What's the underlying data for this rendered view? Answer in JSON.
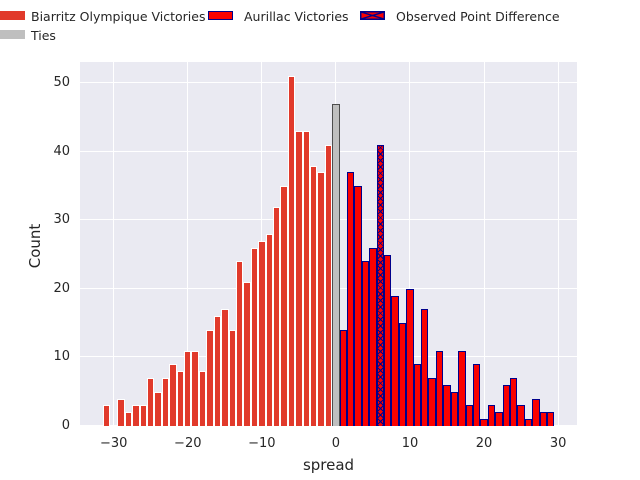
{
  "legend": {
    "items": [
      {
        "label": "Biarritz Olympique Victories",
        "swatch": "solid",
        "color": "#e13a2b",
        "edge": "none"
      },
      {
        "label": "Aurillac Victories",
        "swatch": "solid",
        "color": "#fa0100",
        "edge": "#00008b"
      },
      {
        "label": "Observed Point Difference",
        "swatch": "x-hatch",
        "color": "#fa0100",
        "edge": "#00008b",
        "hatch_color": "#00008b"
      },
      {
        "label": "Ties",
        "swatch": "solid",
        "color": "#bfbfbf",
        "edge": "none"
      }
    ]
  },
  "axes": {
    "xlabel": "spread",
    "ylabel": "Count",
    "x_tick_labels": [
      "−30",
      "−20",
      "−10",
      "0",
      "10",
      "20",
      "30"
    ],
    "y_tick_labels": [
      "0",
      "10",
      "20",
      "30",
      "40",
      "50"
    ]
  },
  "colors": {
    "plot_background": "#eaeaf2",
    "figure_background": "#ffffff",
    "gridline": "#ffffff",
    "text": "#262626",
    "biarritz_bar": "#e13a2b",
    "aurillac_bar": "#fa0100",
    "aurillac_edge": "#00008b",
    "ties_bar": "#bfbfbf",
    "ties_edge": "#4d4d4d"
  },
  "chart_data": {
    "type": "bar",
    "subtype": "histogram",
    "title": "",
    "xlabel": "spread",
    "ylabel": "Count",
    "bin_width": 1,
    "x_ticks": [
      -30,
      -20,
      -10,
      0,
      10,
      20,
      30
    ],
    "y_ticks": [
      0,
      10,
      20,
      30,
      40,
      50
    ],
    "xlim": [
      -34.55,
      32.55
    ],
    "ylim": [
      0,
      53.1
    ],
    "grid": true,
    "legend_position": "top-left-above-axes",
    "series": [
      {
        "name": "Biarritz Olympique Victories",
        "style": "biarritz",
        "x": [
          -31,
          -29,
          -28,
          -27,
          -26,
          -25,
          -24,
          -23,
          -22,
          -21,
          -20,
          -19,
          -18,
          -17,
          -16,
          -15,
          -14,
          -13,
          -12,
          -11,
          -10,
          -9,
          -8,
          -7,
          -6,
          -5,
          -4,
          -3,
          -2,
          -1
        ],
        "values": [
          3,
          4,
          2,
          3,
          3,
          7,
          5,
          7,
          9,
          8,
          11,
          11,
          8,
          14,
          16,
          17,
          14,
          24,
          21,
          26,
          27,
          28,
          32,
          35,
          51,
          43,
          43,
          38,
          37,
          41
        ]
      },
      {
        "name": "Ties",
        "style": "ties",
        "x": [
          0
        ],
        "values": [
          47
        ]
      },
      {
        "name": "Aurillac Victories",
        "style": "aurillac",
        "x": [
          1,
          2,
          3,
          4,
          5,
          7,
          8,
          9,
          10,
          11,
          12,
          13,
          14,
          15,
          16,
          17,
          18,
          19,
          20,
          21,
          22,
          23,
          24,
          25,
          26,
          27,
          28,
          29
        ],
        "values": [
          14,
          37,
          35,
          24,
          26,
          25,
          19,
          15,
          20,
          9,
          17,
          7,
          11,
          6,
          5,
          11,
          3,
          9,
          1,
          3,
          2,
          6,
          7,
          3,
          1,
          4,
          2,
          2
        ]
      },
      {
        "name": "Observed Point Difference",
        "style": "hatch",
        "x": [
          6
        ],
        "values": [
          41
        ]
      }
    ]
  }
}
